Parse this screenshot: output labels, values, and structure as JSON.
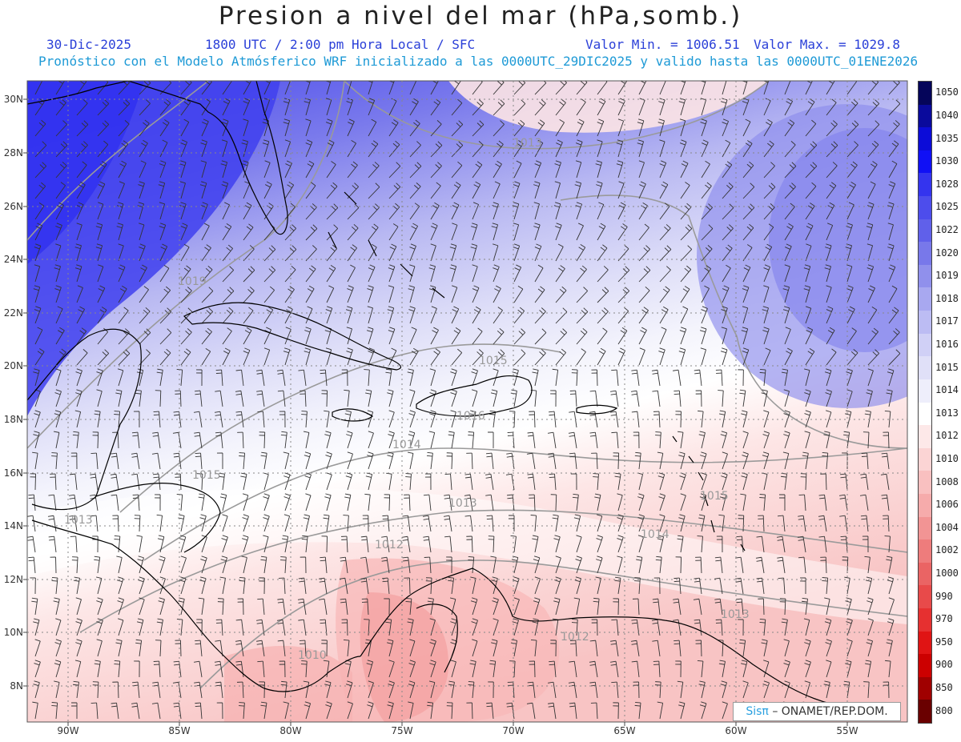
{
  "header": {
    "title": "Presion a nivel del mar (hPa,somb.)",
    "date": "30-Dic-2025",
    "time_info": "1800 UTC / 2:00 pm Hora Local / SFC",
    "min_value": "Valor Min. = 1006.51",
    "max_value": "Valor Max. = 1029.8",
    "forecast_info": "Pronóstico con el Modelo Atmósferico WRF inicializado a las 0000UTC_29DIC2025 y valido hasta las  0000UTC_01ENE2026"
  },
  "map": {
    "lat_labels": [
      "30N",
      "28N",
      "26N",
      "24N",
      "22N",
      "20N",
      "18N",
      "16N",
      "14N",
      "12N",
      "10N",
      "8N"
    ],
    "lon_labels": [
      "90W",
      "85W",
      "80W",
      "75W",
      "70W",
      "65W",
      "60W",
      "55W"
    ],
    "isobar_labels": [
      "1013",
      "1019",
      "1015",
      "1014",
      "1015",
      "1013",
      "1012",
      "1010",
      "1012",
      "1013",
      "1015",
      "1014",
      "1016",
      "1013"
    ]
  },
  "scale": {
    "labels": [
      "1050",
      "1040",
      "1035",
      "1030",
      "1028",
      "1025",
      "1022",
      "1020",
      "1019",
      "1018",
      "1017",
      "1016",
      "1015",
      "1014",
      "1013",
      "1012",
      "1010",
      "1008",
      "1006",
      "1004",
      "1002",
      "1000",
      "990",
      "970",
      "950",
      "900",
      "850",
      "800"
    ],
    "colors": [
      "#05055a",
      "#0a0a9c",
      "#0c0cd8",
      "#1010f5",
      "#3434ee",
      "#4d4dec",
      "#6060ea",
      "#7878ea",
      "#9090ec",
      "#a8a8f0",
      "#bcbcf3",
      "#d0d0f6",
      "#e0e0f8",
      "#eeeefb",
      "#ffffff",
      "#fde8e8",
      "#fbd4d4",
      "#f9c0c0",
      "#f6abab",
      "#f29494",
      "#ee7c7c",
      "#ea6464",
      "#e84a4a",
      "#e63030",
      "#e01414",
      "#cc0000",
      "#a00000",
      "#6a0000"
    ]
  },
  "credit": {
    "sis": "Sisπ",
    "org": "– ONAMET/REP.DOM."
  }
}
